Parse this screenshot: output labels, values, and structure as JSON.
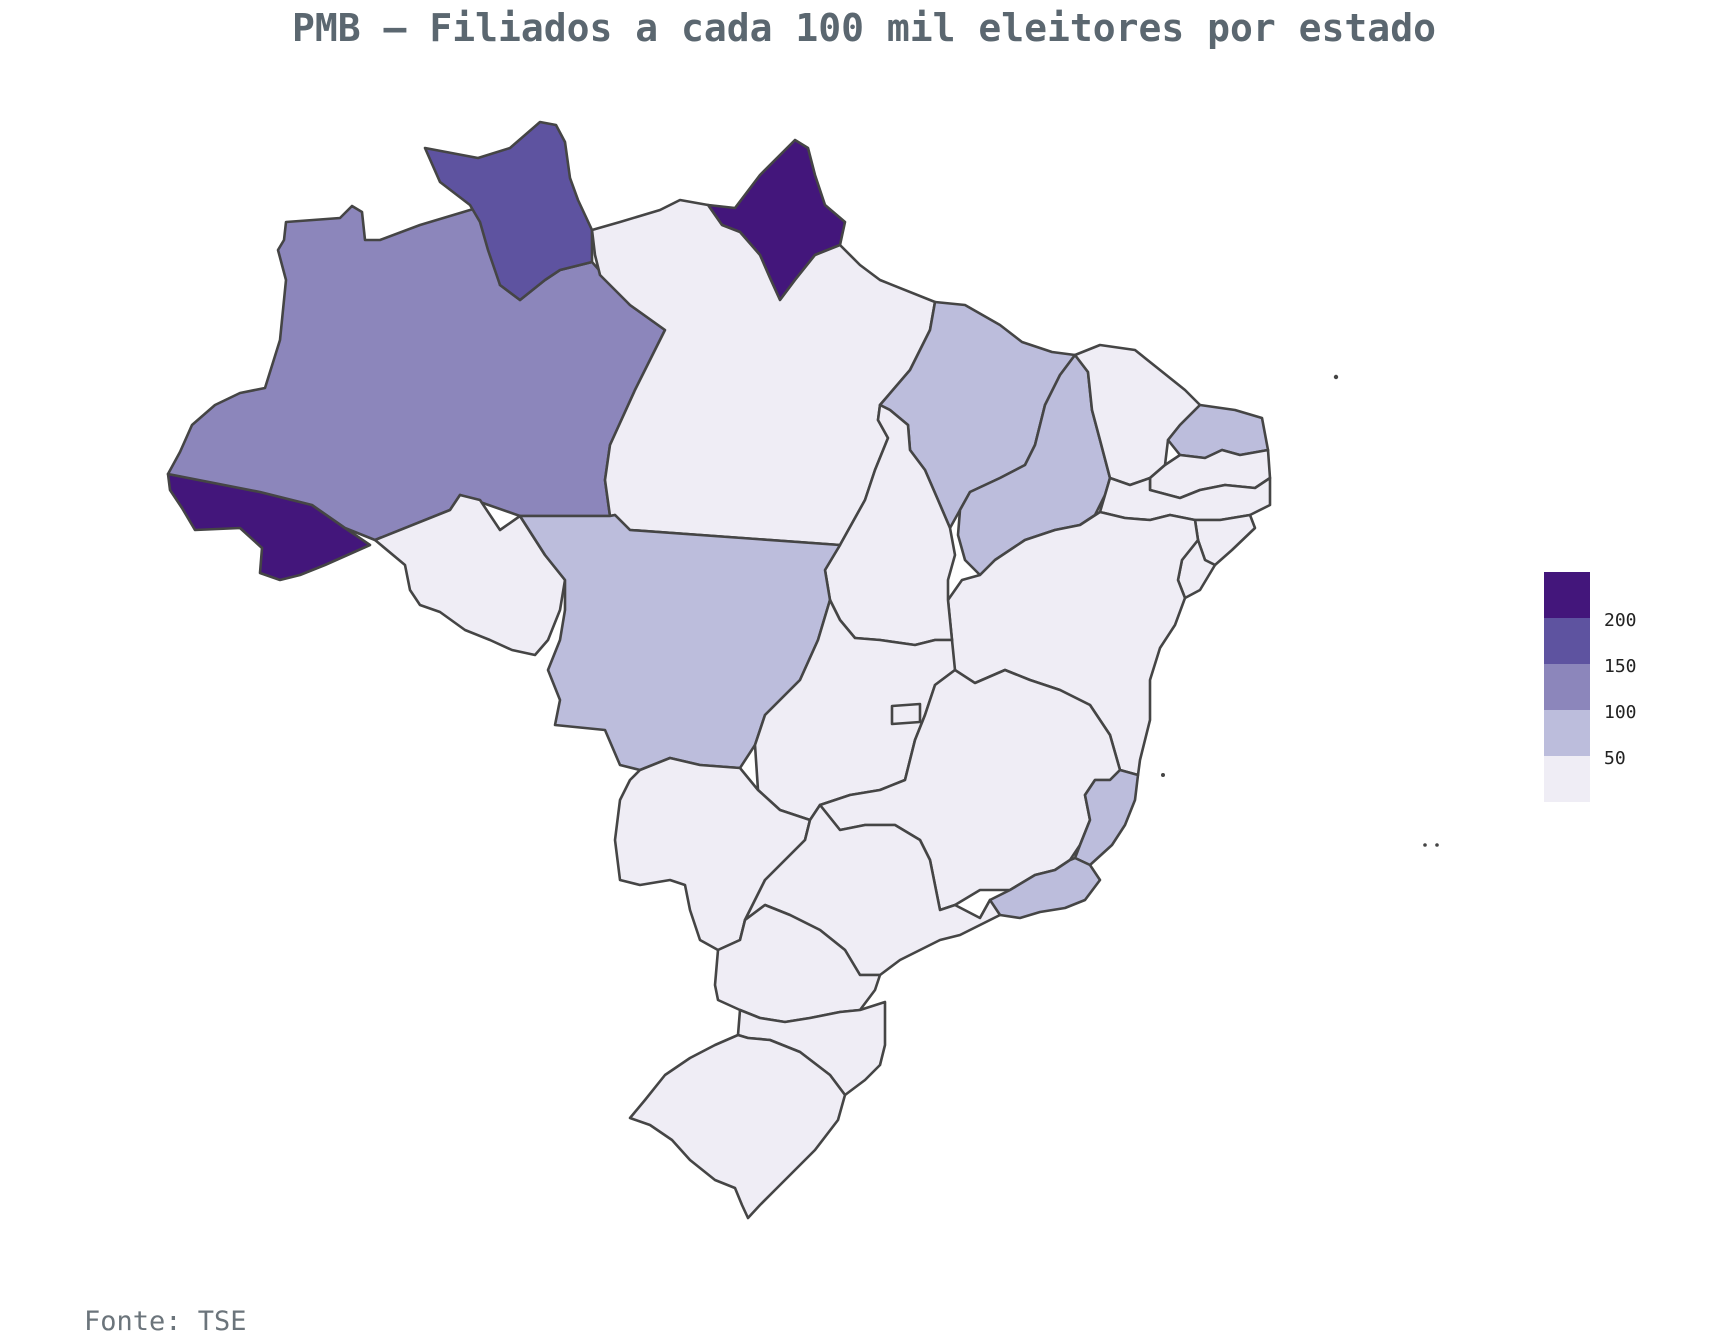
{
  "title": "PMB – Filiados a cada 100 mil eleitores por estado",
  "source": "Fonte: TSE",
  "colors": {
    "bin_0_50": "#efedf5",
    "bin_50_100": "#bcbddc",
    "bin_100_150": "#8c86bb",
    "bin_150_200": "#5e53a0",
    "bin_200_plus": "#43167b",
    "border": "#454545"
  },
  "legend": {
    "labels": [
      "200",
      "150",
      "100",
      "50"
    ],
    "bins": [
      "bin_200_plus",
      "bin_150_200",
      "bin_100_150",
      "bin_50_100",
      "bin_0_50"
    ]
  },
  "states": [
    {
      "name": "AC",
      "bin": "bin_200_plus"
    },
    {
      "name": "AM",
      "bin": "bin_100_150"
    },
    {
      "name": "RR",
      "bin": "bin_150_200"
    },
    {
      "name": "AP",
      "bin": "bin_200_plus"
    },
    {
      "name": "PA",
      "bin": "bin_0_50"
    },
    {
      "name": "MA",
      "bin": "bin_50_100"
    },
    {
      "name": "PI",
      "bin": "bin_50_100"
    },
    {
      "name": "CE",
      "bin": "bin_0_50"
    },
    {
      "name": "RN",
      "bin": "bin_50_100"
    },
    {
      "name": "PB",
      "bin": "bin_0_50"
    },
    {
      "name": "PE",
      "bin": "bin_0_50"
    },
    {
      "name": "AL",
      "bin": "bin_0_50"
    },
    {
      "name": "SE",
      "bin": "bin_0_50"
    },
    {
      "name": "BA",
      "bin": "bin_0_50"
    },
    {
      "name": "TO",
      "bin": "bin_0_50"
    },
    {
      "name": "RO",
      "bin": "bin_0_50"
    },
    {
      "name": "MT",
      "bin": "bin_50_100"
    },
    {
      "name": "GO",
      "bin": "bin_0_50"
    },
    {
      "name": "DF",
      "bin": "bin_0_50"
    },
    {
      "name": "MS",
      "bin": "bin_0_50"
    },
    {
      "name": "MG",
      "bin": "bin_0_50"
    },
    {
      "name": "ES",
      "bin": "bin_50_100"
    },
    {
      "name": "RJ",
      "bin": "bin_50_100"
    },
    {
      "name": "SP",
      "bin": "bin_0_50"
    },
    {
      "name": "PR",
      "bin": "bin_0_50"
    },
    {
      "name": "SC",
      "bin": "bin_0_50"
    },
    {
      "name": "RS",
      "bin": "bin_0_50"
    }
  ]
}
